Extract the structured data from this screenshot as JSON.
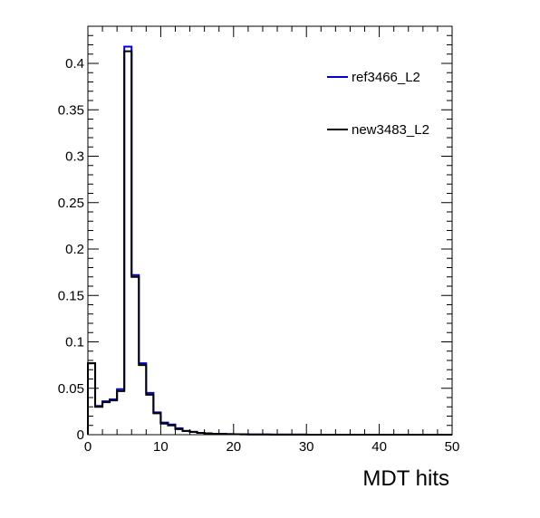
{
  "chart_data": {
    "type": "line",
    "xlabel": "MDT hits",
    "ylabel": "",
    "xlim": [
      0,
      50
    ],
    "ylim": [
      0,
      0.44
    ],
    "x_ticks": [
      "0",
      "10",
      "20",
      "30",
      "40",
      "50"
    ],
    "y_ticks": [
      "0",
      "0.05",
      "0.1",
      "0.15",
      "0.2",
      "0.25",
      "0.3",
      "0.35",
      "0.4"
    ],
    "grid": false,
    "legend_position": "top-right",
    "bin_edges": [
      0,
      1,
      2,
      3,
      4,
      5,
      6,
      7,
      8,
      9,
      10,
      11,
      12,
      13,
      14,
      15,
      16,
      17,
      18,
      19,
      20,
      21,
      22,
      23,
      24,
      25,
      26,
      27,
      28,
      29,
      30,
      31,
      32,
      33,
      34,
      35,
      36,
      37,
      38,
      39,
      40,
      41,
      42,
      43,
      44,
      45,
      46,
      47,
      48,
      49,
      50
    ],
    "series": [
      {
        "name": "ref3466_L2",
        "color": "#0000cc",
        "values": [
          0.077,
          0.031,
          0.036,
          0.038,
          0.049,
          0.418,
          0.172,
          0.077,
          0.045,
          0.024,
          0.013,
          0.011,
          0.007,
          0.004,
          0.003,
          0.002,
          0.0015,
          0.001,
          0.0008,
          0.0006,
          0.0005,
          0.0004,
          0.0003,
          0.0002,
          0.0002,
          0.0001,
          0.0001,
          0.0001,
          0.0001,
          0.0001,
          0,
          0,
          0,
          0,
          0,
          0,
          0,
          0,
          0,
          0,
          0,
          0,
          0,
          0,
          0,
          0,
          0,
          0,
          0,
          0
        ]
      },
      {
        "name": "new3483_L2",
        "color": "#000000",
        "values": [
          0.077,
          0.03,
          0.035,
          0.037,
          0.047,
          0.413,
          0.17,
          0.075,
          0.043,
          0.023,
          0.012,
          0.01,
          0.006,
          0.004,
          0.003,
          0.002,
          0.0015,
          0.001,
          0.0008,
          0.0006,
          0.0005,
          0.0004,
          0.0003,
          0.0002,
          0.0002,
          0.0001,
          0.0001,
          0.0001,
          0.0001,
          0.0001,
          0,
          0,
          0,
          0,
          0,
          0,
          0,
          0,
          0,
          0,
          0,
          0,
          0,
          0,
          0,
          0,
          0,
          0,
          0,
          0
        ]
      }
    ]
  }
}
